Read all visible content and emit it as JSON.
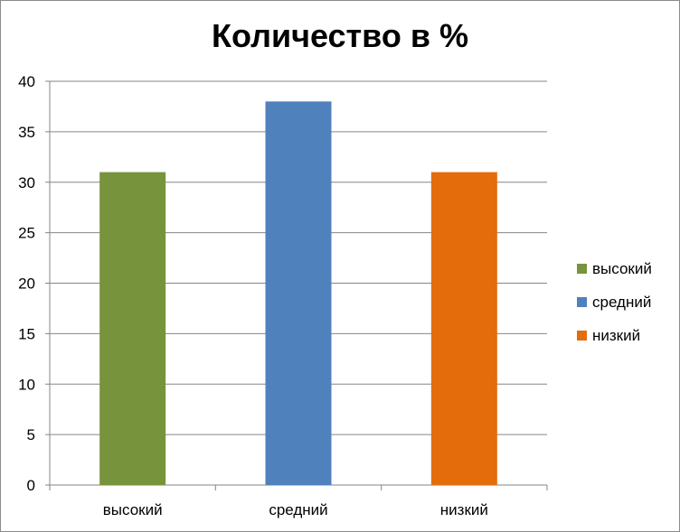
{
  "chart_data": {
    "type": "bar",
    "title": "Количество в %",
    "categories": [
      "высокий",
      "средний",
      "низкий"
    ],
    "values": [
      31,
      38,
      31
    ],
    "colors": [
      "#77933c",
      "#4f81bd",
      "#e46c0a"
    ],
    "xlabel": "",
    "ylabel": "",
    "ylim": [
      0,
      40
    ],
    "yticks": [
      0,
      5,
      10,
      15,
      20,
      25,
      30,
      35,
      40
    ],
    "grid": true,
    "legend": {
      "placement": "right",
      "entries": [
        "высокий",
        "средний",
        "низкий"
      ]
    }
  }
}
